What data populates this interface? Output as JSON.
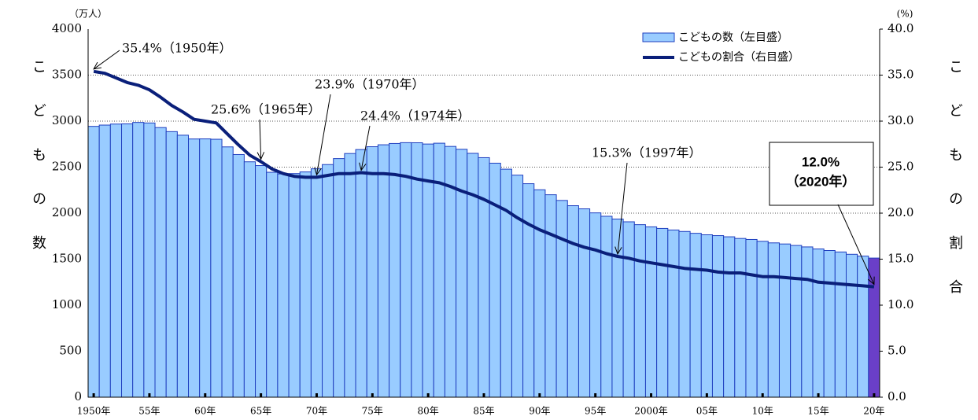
{
  "chart_data": {
    "type": "bar-line",
    "y_unit": "（万人）",
    "y2_unit": "(%)",
    "y_title": "こどもの数",
    "y2_title": "こどもの割合",
    "categories": [
      "1950年",
      null,
      null,
      null,
      null,
      "55年",
      null,
      null,
      null,
      null,
      "60年",
      null,
      null,
      null,
      null,
      "65年",
      null,
      null,
      null,
      null,
      "70年",
      null,
      null,
      null,
      null,
      "75年",
      null,
      null,
      null,
      null,
      "80年",
      null,
      null,
      null,
      null,
      "85年",
      null,
      null,
      null,
      null,
      "90年",
      null,
      null,
      null,
      null,
      "95年",
      null,
      null,
      null,
      null,
      "2000年",
      null,
      null,
      null,
      null,
      "05年",
      null,
      null,
      null,
      null,
      "10年",
      null,
      null,
      null,
      null,
      "15年",
      null,
      null,
      null,
      null,
      "20年"
    ],
    "series": [
      {
        "name": "こどもの数（左目盛）",
        "color": "#99ccff",
        "border": "#1f3fbf",
        "last_color": "#6a3fc8",
        "values": [
          2943,
          2957,
          2968,
          2970,
          2986,
          2980,
          2930,
          2886,
          2847,
          2806,
          2807,
          2803,
          2720,
          2637,
          2558,
          2517,
          2444,
          2426,
          2430,
          2448,
          2482,
          2528,
          2593,
          2648,
          2691,
          2722,
          2743,
          2757,
          2766,
          2765,
          2751,
          2760,
          2725,
          2694,
          2650,
          2603,
          2543,
          2478,
          2413,
          2320,
          2254,
          2200,
          2138,
          2081,
          2047,
          2003,
          1966,
          1936,
          1906,
          1875,
          1851,
          1834,
          1817,
          1801,
          1781,
          1765,
          1756,
          1743,
          1725,
          1714,
          1694,
          1677,
          1665,
          1649,
          1633,
          1611,
          1594,
          1578,
          1553,
          1533,
          1512
        ]
      },
      {
        "name": "こどもの割合（右目盛）",
        "color": "#0a1f7a",
        "axis": "y2",
        "values": [
          35.4,
          35.2,
          34.7,
          34.2,
          33.9,
          33.4,
          32.6,
          31.7,
          31.0,
          30.2,
          30.0,
          29.8,
          28.6,
          27.4,
          26.3,
          25.6,
          24.8,
          24.3,
          24.0,
          23.9,
          23.9,
          24.1,
          24.3,
          24.3,
          24.4,
          24.3,
          24.3,
          24.2,
          24.0,
          23.7,
          23.5,
          23.3,
          22.9,
          22.4,
          22.0,
          21.5,
          20.9,
          20.3,
          19.5,
          18.8,
          18.2,
          17.7,
          17.2,
          16.7,
          16.3,
          16.0,
          15.6,
          15.3,
          15.1,
          14.8,
          14.6,
          14.4,
          14.2,
          14.0,
          13.9,
          13.8,
          13.6,
          13.5,
          13.5,
          13.3,
          13.1,
          13.1,
          13.0,
          12.9,
          12.8,
          12.5,
          12.4,
          12.3,
          12.2,
          12.1,
          12.0
        ]
      }
    ],
    "ylim": [
      0,
      4000
    ],
    "yticks": [
      0,
      500,
      1000,
      1500,
      2000,
      2500,
      3000,
      3500,
      4000
    ],
    "y2lim": [
      0,
      40
    ],
    "y2ticks": [
      {
        "value": 0,
        "label": "0.0"
      },
      {
        "value": 5,
        "label": "5.0"
      },
      {
        "value": 10,
        "label": "10.0"
      },
      {
        "value": 15,
        "label": "15.0"
      },
      {
        "value": 20,
        "label": "20.0"
      },
      {
        "value": 25,
        "label": "25.0"
      },
      {
        "value": 30,
        "label": "30.0"
      },
      {
        "value": 35,
        "label": "35.0"
      },
      {
        "value": 40,
        "label": "40.0"
      }
    ],
    "grid": true,
    "annotations": [
      {
        "text": "35.4%（1950年）"
      },
      {
        "text": "25.6%（1965年）"
      },
      {
        "text": "23.9%（1970年）"
      },
      {
        "text": "24.4%（1974年）"
      },
      {
        "text": "15.3%（1997年）"
      },
      {
        "lines": [
          "12.0%",
          "（2020年）"
        ]
      }
    ]
  }
}
